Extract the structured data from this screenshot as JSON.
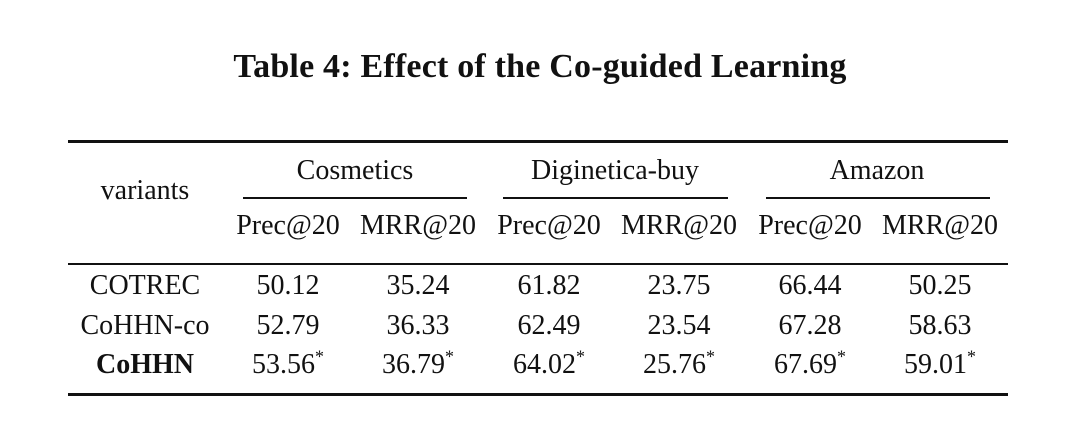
{
  "caption": "Table 4: Effect of the Co-guided Learning",
  "table": {
    "row_header": "variants",
    "groups": [
      "Cosmetics",
      "Diginetica-buy",
      "Amazon"
    ],
    "metrics": [
      "Prec@20",
      "MRR@20",
      "Prec@20",
      "MRR@20",
      "Prec@20",
      "MRR@20"
    ],
    "rows": [
      {
        "name": "COTREC",
        "bold": false,
        "values": [
          "50.12",
          "35.24",
          "61.82",
          "23.75",
          "66.44",
          "50.25"
        ],
        "marks": [
          "",
          "",
          "",
          "",
          "",
          ""
        ]
      },
      {
        "name": "CoHHN-co",
        "bold": false,
        "values": [
          "52.79",
          "36.33",
          "62.49",
          "23.54",
          "67.28",
          "58.63"
        ],
        "marks": [
          "",
          "",
          "",
          "",
          "",
          ""
        ]
      },
      {
        "name": "CoHHN",
        "bold": true,
        "values": [
          "53.56",
          "36.79",
          "64.02",
          "25.76",
          "67.69",
          "59.01"
        ],
        "marks": [
          "*",
          "*",
          "*",
          "*",
          "*",
          "*"
        ]
      }
    ]
  }
}
